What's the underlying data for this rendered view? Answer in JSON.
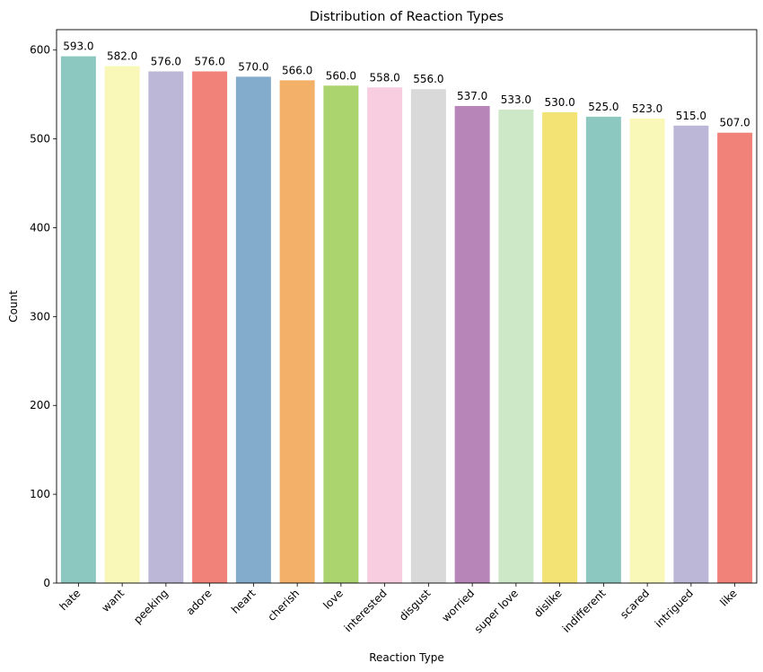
{
  "chart_data": {
    "type": "bar",
    "title": "Distribution of Reaction Types",
    "xlabel": "Reaction Type",
    "ylabel": "Count",
    "ylim": [
      0,
      623
    ],
    "yticks": [
      0,
      100,
      200,
      300,
      400,
      500,
      600
    ],
    "grid": false,
    "categories": [
      "hate",
      "want",
      "peeking",
      "adore",
      "heart",
      "cherish",
      "love",
      "interested",
      "disgust",
      "worried",
      "super love",
      "dislike",
      "indifferent",
      "scared",
      "intrigued",
      "like"
    ],
    "values": [
      593,
      582,
      576,
      576,
      570,
      566,
      560,
      558,
      556,
      537,
      533,
      530,
      525,
      523,
      515,
      507
    ],
    "data_labels": [
      "593.0",
      "582.0",
      "576.0",
      "576.0",
      "570.0",
      "566.0",
      "560.0",
      "558.0",
      "556.0",
      "537.0",
      "533.0",
      "530.0",
      "525.0",
      "523.0",
      "515.0",
      "507.0"
    ],
    "colors": [
      "#8dc8c0",
      "#f9f8b8",
      "#bcb7d6",
      "#f0827a",
      "#83abcb",
      "#f3b068",
      "#abd36e",
      "#f8cde0",
      "#d9d9d9",
      "#b785b7",
      "#cce8c7",
      "#f3e375",
      "#8dc8c0",
      "#f9f8b8",
      "#bcb7d6",
      "#f0827a"
    ]
  }
}
